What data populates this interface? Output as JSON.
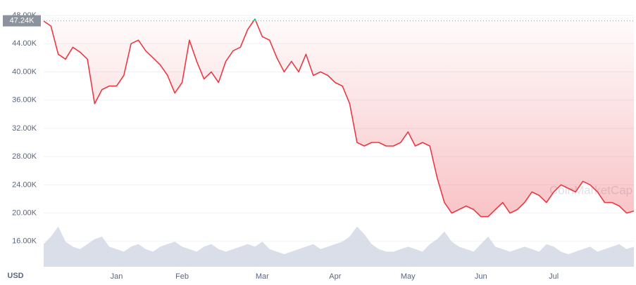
{
  "chart_data": {
    "type": "line",
    "y_label": "USD",
    "watermark": "CoinMarketCap",
    "price_marker": {
      "value": 47240,
      "label": "47.24K"
    },
    "categories": [
      null,
      null,
      null,
      null,
      null,
      null,
      null,
      null,
      null,
      null,
      "Jan",
      null,
      null,
      null,
      null,
      null,
      null,
      null,
      null,
      "Feb",
      null,
      null,
      null,
      null,
      null,
      null,
      null,
      null,
      null,
      null,
      "Mar",
      null,
      null,
      null,
      null,
      null,
      null,
      null,
      null,
      null,
      "Apr",
      null,
      null,
      null,
      null,
      null,
      null,
      null,
      null,
      null,
      "May",
      null,
      null,
      null,
      null,
      null,
      null,
      null,
      null,
      null,
      "Jun",
      null,
      null,
      null,
      null,
      null,
      null,
      null,
      null,
      null,
      "Jul",
      null,
      null,
      null,
      null,
      null,
      null,
      null,
      null,
      null,
      null,
      null
    ],
    "series": [
      {
        "name": "Price",
        "color": "#ea3943",
        "above_color": "#16c784",
        "values": [
          47200,
          46500,
          42500,
          41800,
          43500,
          42800,
          41800,
          35500,
          37500,
          38000,
          38000,
          39500,
          44000,
          44500,
          43000,
          42000,
          41000,
          39500,
          37000,
          38500,
          44500,
          41500,
          39000,
          40000,
          38500,
          41500,
          43000,
          43500,
          46000,
          47500,
          45000,
          44500,
          42000,
          40000,
          41500,
          40000,
          42500,
          39500,
          40000,
          39500,
          38500,
          38000,
          35500,
          30000,
          29500,
          30000,
          30000,
          29500,
          29500,
          30000,
          31500,
          29500,
          30000,
          29500,
          25000,
          21500,
          20000,
          20500,
          21000,
          20500,
          19500,
          19500,
          20500,
          21500,
          20000,
          20500,
          21500,
          23000,
          22500,
          21500,
          23000,
          24000,
          23500,
          23000,
          24500,
          24000,
          23000,
          21500,
          21500,
          21000,
          20000,
          20300
        ]
      },
      {
        "name": "Volume",
        "color": "#cfd6e4",
        "axis": "y2",
        "values": [
          9,
          12,
          16,
          10,
          8,
          7,
          9,
          11,
          12,
          8,
          7,
          6,
          8,
          9,
          7,
          6,
          8,
          9,
          10,
          8,
          7,
          6,
          8,
          9,
          7,
          6,
          7,
          8,
          9,
          8,
          10,
          7,
          6,
          5,
          6,
          7,
          8,
          9,
          7,
          8,
          9,
          10,
          12,
          16,
          13,
          9,
          7,
          6,
          6,
          7,
          8,
          7,
          6,
          9,
          11,
          14,
          10,
          8,
          7,
          6,
          9,
          12,
          8,
          7,
          6,
          7,
          8,
          7,
          6,
          9,
          8,
          6,
          5,
          6,
          7,
          8,
          6,
          7,
          8,
          9,
          7,
          8
        ]
      }
    ],
    "ylim": [
      12400,
      48000
    ],
    "y2lim": [
      0,
      100
    ],
    "yticks": [
      {
        "value": 16000,
        "label": "16.00K"
      },
      {
        "value": 20000,
        "label": "20.00K"
      },
      {
        "value": 24000,
        "label": "24.00K"
      },
      {
        "value": 28000,
        "label": "28.00K"
      },
      {
        "value": 32000,
        "label": "32.00K"
      },
      {
        "value": 36000,
        "label": "36.00K"
      },
      {
        "value": 40000,
        "label": "40.00K"
      },
      {
        "value": 44000,
        "label": "44.00K"
      },
      {
        "value": 48000,
        "label": "48.00K"
      }
    ],
    "grid": true
  }
}
